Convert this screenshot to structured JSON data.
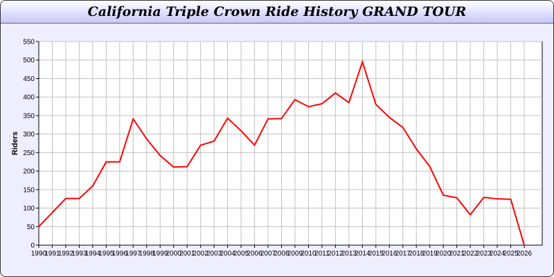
{
  "chart_data": {
    "type": "line",
    "title": "California Triple Crown Ride History GRAND TOUR",
    "xlabel": "",
    "ylabel": "Riders",
    "ylim": [
      0,
      550
    ],
    "yticks": [
      0,
      50,
      100,
      150,
      200,
      250,
      300,
      350,
      400,
      450,
      500,
      550
    ],
    "grid": true,
    "line_color": "#ff0000",
    "x": [
      1990,
      1991,
      1992,
      1993,
      1994,
      1995,
      1996,
      1997,
      1998,
      1999,
      2000,
      2001,
      2002,
      2003,
      2004,
      2005,
      2006,
      2007,
      2008,
      2009,
      2010,
      2011,
      2012,
      2013,
      2014,
      2015,
      2016,
      2017,
      2018,
      2019,
      2020,
      2021,
      2022,
      2023,
      2024,
      2025,
      2026
    ],
    "values": [
      50,
      88,
      126,
      126,
      160,
      225,
      225,
      341,
      287,
      242,
      211,
      212,
      270,
      281,
      343,
      309,
      270,
      341,
      342,
      393,
      374,
      382,
      411,
      385,
      495,
      380,
      345,
      318,
      260,
      212,
      135,
      128,
      82,
      129,
      125,
      124,
      0
    ]
  }
}
